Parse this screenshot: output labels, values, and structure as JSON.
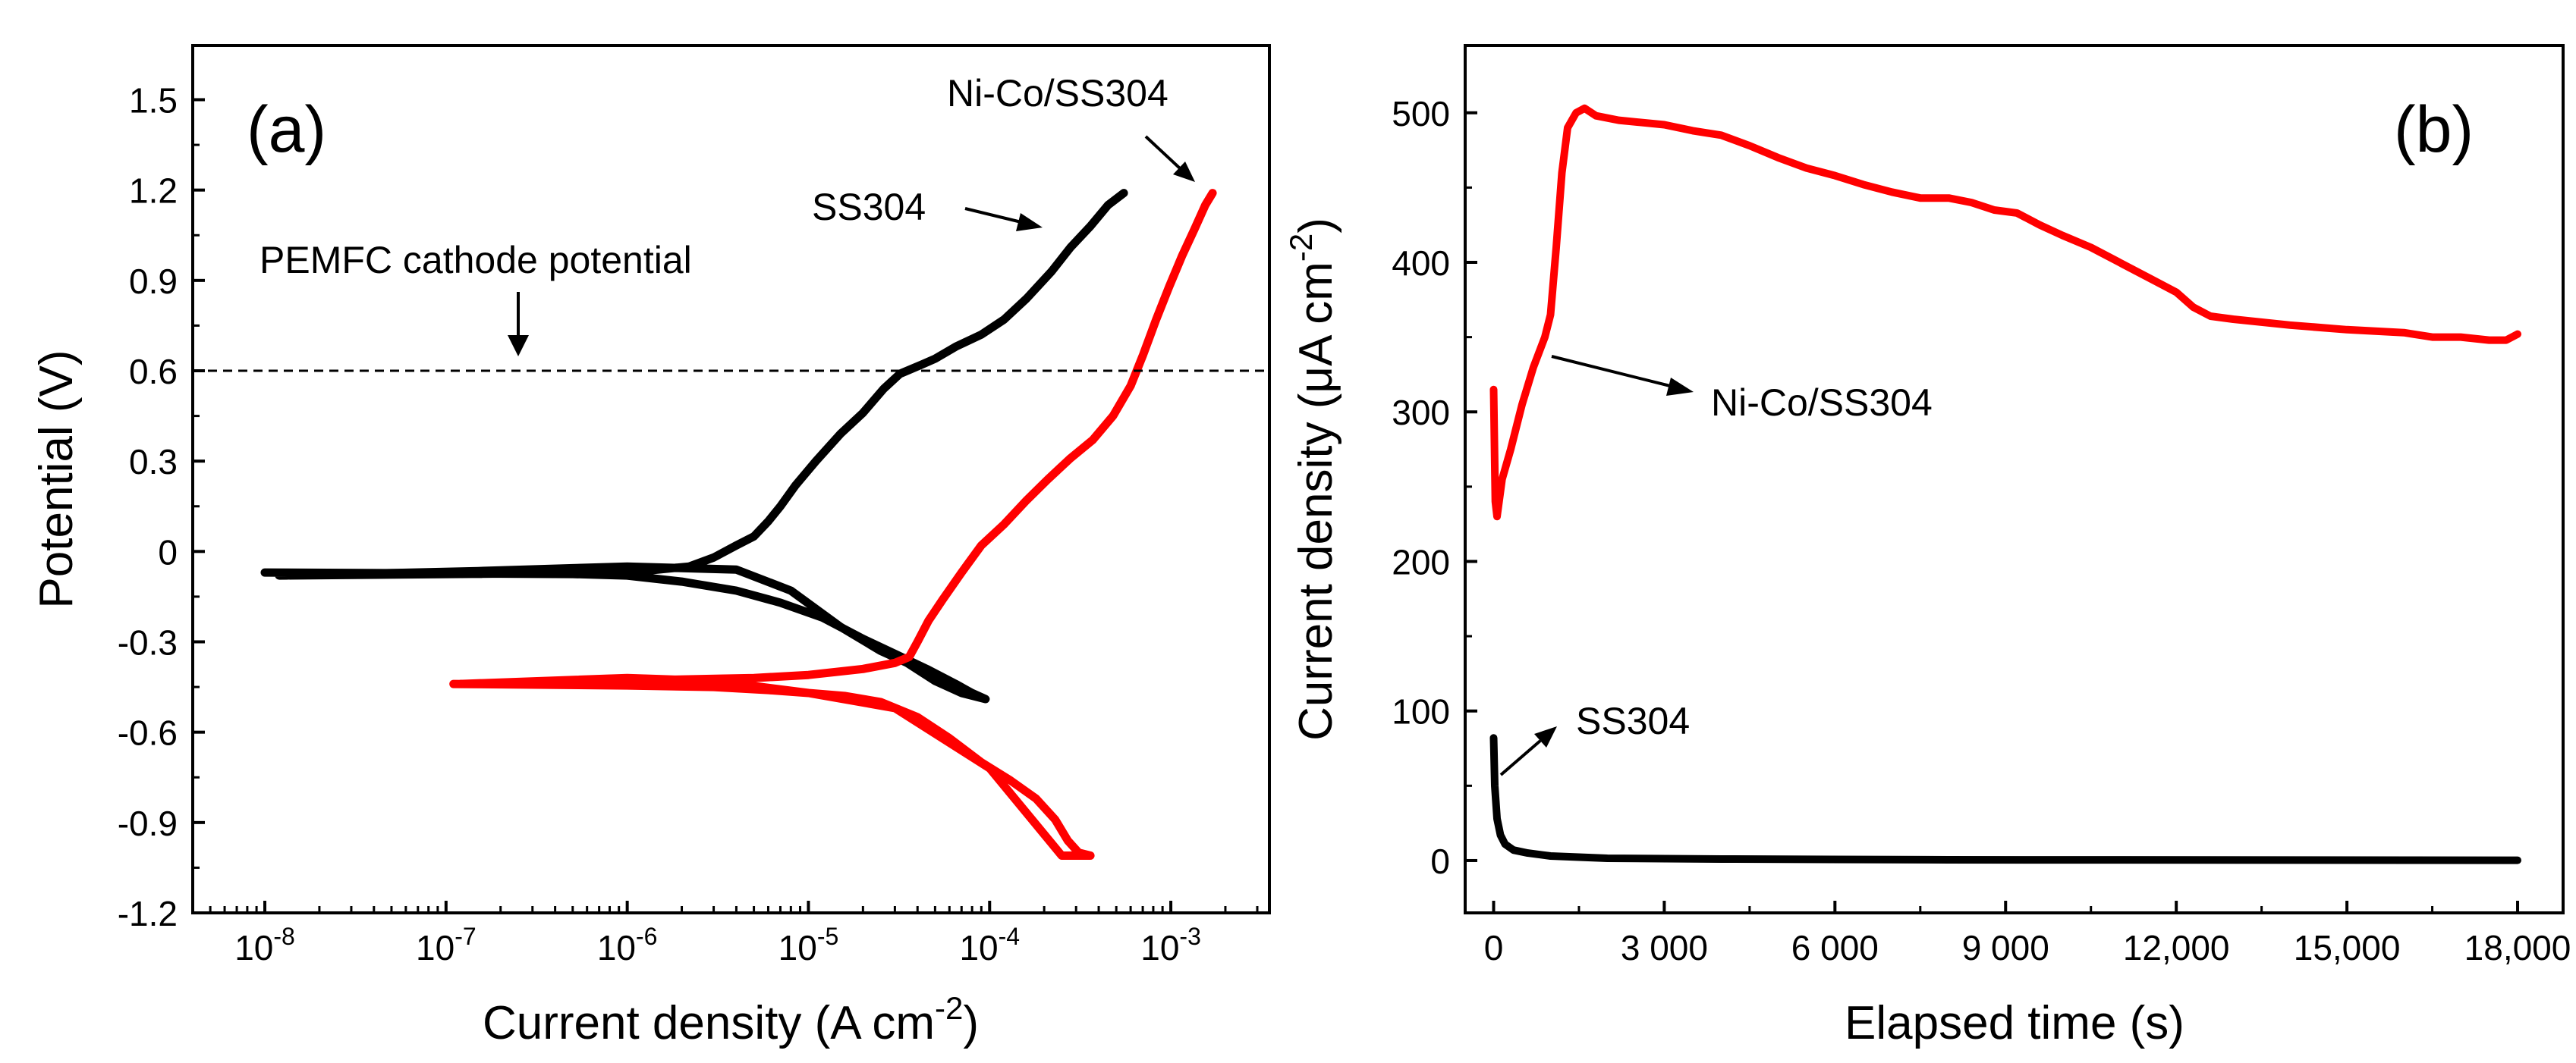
{
  "figure": {
    "colors": {
      "black_series": "#000000",
      "red_series": "#ff0000",
      "axis": "#000000",
      "reference_line": "#000000"
    }
  },
  "chart_data": [
    {
      "panel": "a",
      "type": "line",
      "panel_label": "(a)",
      "title": "",
      "xlabel": "Current density (A cm",
      "xlabel_sup": "-2",
      "xlabel_end": ")",
      "ylabel": "Potential (V)",
      "xscale": "log",
      "xlim": [
        4e-09,
        0.0035
      ],
      "ylim": [
        -1.2,
        1.68
      ],
      "x_ticks": [
        {
          "base": "10",
          "exp": "-8",
          "value": 1e-08
        },
        {
          "base": "10",
          "exp": "-7",
          "value": 1e-07
        },
        {
          "base": "10",
          "exp": "-6",
          "value": 1e-06
        },
        {
          "base": "10",
          "exp": "-5",
          "value": 1e-05
        },
        {
          "base": "10",
          "exp": "-4",
          "value": 0.0001
        },
        {
          "base": "10",
          "exp": "-3",
          "value": 0.001
        }
      ],
      "y_ticks": [
        {
          "label": "1.5",
          "value": 1.5
        },
        {
          "label": "1.2",
          "value": 1.2
        },
        {
          "label": "0.9",
          "value": 0.9
        },
        {
          "label": "0.6",
          "value": 0.6
        },
        {
          "label": "0.3",
          "value": 0.3
        },
        {
          "label": "0",
          "value": 0
        },
        {
          "label": "-0.3",
          "value": -0.3
        },
        {
          "label": "-0.6",
          "value": -0.6
        },
        {
          "label": "-0.9",
          "value": -0.9
        },
        {
          "label": "-1.2",
          "value": -1.2
        }
      ],
      "reference_line": {
        "y": 0.6,
        "label": "PEMFC cathode potential",
        "style": "dashed"
      },
      "annotations": [
        {
          "text": "SS304",
          "series": "SS304"
        },
        {
          "text": "Ni-Co/SS304",
          "series": "Ni-Co/SS304"
        }
      ],
      "series": [
        {
          "name": "SS304",
          "color": "#000000",
          "points": [
            [
              1e-08,
              -0.07
            ],
            [
              5e-07,
              -0.075
            ],
            [
              1e-06,
              -0.08
            ],
            [
              2e-06,
              -0.1
            ],
            [
              4e-06,
              -0.13
            ],
            [
              7e-06,
              -0.17
            ],
            [
              1.2e-05,
              -0.22
            ],
            [
              2e-05,
              -0.29
            ],
            [
              3e-05,
              -0.34
            ],
            [
              4.5e-05,
              -0.39
            ],
            [
              6.5e-05,
              -0.44
            ],
            [
              8e-05,
              -0.47
            ],
            [
              9.5e-05,
              -0.49
            ],
            [
              7e-05,
              -0.47
            ],
            [
              5e-05,
              -0.43
            ],
            [
              3.5e-05,
              -0.37
            ],
            [
              2.5e-05,
              -0.33
            ],
            [
              1.5e-05,
              -0.25
            ],
            [
              8e-06,
              -0.13
            ],
            [
              4e-06,
              -0.06
            ],
            [
              1e-06,
              -0.05
            ],
            [
              1.5e-07,
              -0.065
            ],
            [
              1.2e-08,
              -0.08
            ],
            [
              1e-06,
              -0.07
            ],
            [
              2.2e-06,
              -0.05
            ],
            [
              3e-06,
              -0.02
            ],
            [
              4e-06,
              0.02
            ],
            [
              5e-06,
              0.05
            ],
            [
              6e-06,
              0.1
            ],
            [
              7e-06,
              0.15
            ],
            [
              8.5e-06,
              0.22
            ],
            [
              1.1e-05,
              0.3
            ],
            [
              1.5e-05,
              0.39
            ],
            [
              2e-05,
              0.46
            ],
            [
              2.6e-05,
              0.54
            ],
            [
              3.2e-05,
              0.59
            ],
            [
              4.2e-05,
              0.62
            ],
            [
              5e-05,
              0.64
            ],
            [
              6.5e-05,
              0.68
            ],
            [
              9e-05,
              0.72
            ],
            [
              0.00012,
              0.77
            ],
            [
              0.00016,
              0.84
            ],
            [
              0.00022,
              0.93
            ],
            [
              0.00028,
              1.01
            ],
            [
              0.00036,
              1.08
            ],
            [
              0.00045,
              1.15
            ],
            [
              0.00055,
              1.19
            ]
          ]
        },
        {
          "name": "Ni-Co/SS304",
          "color": "#ff0000",
          "points": [
            [
              1.1e-07,
              -0.44
            ],
            [
              1e-06,
              -0.445
            ],
            [
              3e-06,
              -0.45
            ],
            [
              6e-06,
              -0.46
            ],
            [
              1e-05,
              -0.47
            ],
            [
              1.6e-05,
              -0.48
            ],
            [
              2.5e-05,
              -0.5
            ],
            [
              4e-05,
              -0.55
            ],
            [
              6e-05,
              -0.62
            ],
            [
              9e-05,
              -0.7
            ],
            [
              0.00013,
              -0.76
            ],
            [
              0.00018,
              -0.82
            ],
            [
              0.00023,
              -0.89
            ],
            [
              0.00027,
              -0.96
            ],
            [
              0.00031,
              -1.0
            ],
            [
              0.00036,
              -1.01
            ],
            [
              0.00025,
              -1.01
            ],
            [
              0.0001,
              -0.72
            ],
            [
              3e-05,
              -0.52
            ],
            [
              1e-05,
              -0.47
            ],
            [
              3e-06,
              -0.43
            ],
            [
              1e-06,
              -0.42
            ],
            [
              1.2e-07,
              -0.44
            ],
            [
              5e-06,
              -0.42
            ],
            [
              1e-05,
              -0.41
            ],
            [
              2e-05,
              -0.39
            ],
            [
              3e-05,
              -0.37
            ],
            [
              3.6e-05,
              -0.35
            ],
            [
              4e-05,
              -0.3
            ],
            [
              4.6e-05,
              -0.23
            ],
            [
              5.5e-05,
              -0.16
            ],
            [
              7e-05,
              -0.07
            ],
            [
              9e-05,
              0.02
            ],
            [
              0.00012,
              0.09
            ],
            [
              0.00016,
              0.17
            ],
            [
              0.00021,
              0.24
            ],
            [
              0.00028,
              0.31
            ],
            [
              0.00037,
              0.37
            ],
            [
              0.00048,
              0.45
            ],
            [
              0.0006,
              0.55
            ],
            [
              0.0007,
              0.65
            ],
            [
              0.00083,
              0.77
            ],
            [
              0.00098,
              0.88
            ],
            [
              0.00115,
              0.98
            ],
            [
              0.00135,
              1.07
            ],
            [
              0.00155,
              1.15
            ],
            [
              0.0017,
              1.19
            ]
          ]
        }
      ]
    },
    {
      "panel": "b",
      "type": "line",
      "panel_label": "(b)",
      "title": "",
      "xlabel": "Elapsed time (s)",
      "ylabel": "Current density (μA cm",
      "ylabel_sup": "-2",
      "ylabel_end": ")",
      "xlim": [
        -500,
        18800
      ],
      "ylim": [
        -35,
        545
      ],
      "x_ticks": [
        {
          "label": "0",
          "value": 0
        },
        {
          "label": "3 000",
          "value": 3000
        },
        {
          "label": "6 000",
          "value": 6000
        },
        {
          "label": "9 000",
          "value": 9000
        },
        {
          "label": "12,000",
          "value": 12000
        },
        {
          "label": "15,000",
          "value": 15000
        },
        {
          "label": "18,000",
          "value": 18000
        }
      ],
      "y_ticks": [
        {
          "label": "0",
          "value": 0
        },
        {
          "label": "100",
          "value": 100
        },
        {
          "label": "200",
          "value": 200
        },
        {
          "label": "300",
          "value": 300
        },
        {
          "label": "400",
          "value": 400
        },
        {
          "label": "500",
          "value": 500
        }
      ],
      "annotations": [
        {
          "text": "Ni-Co/SS304",
          "series": "Ni-Co/SS304"
        },
        {
          "text": "SS304",
          "series": "SS304"
        }
      ],
      "series": [
        {
          "name": "Ni-Co/SS304",
          "color": "#ff0000",
          "points": [
            [
              0,
              315
            ],
            [
              30,
              240
            ],
            [
              60,
              230
            ],
            [
              150,
              255
            ],
            [
              300,
              275
            ],
            [
              500,
              305
            ],
            [
              700,
              330
            ],
            [
              900,
              350
            ],
            [
              1000,
              365
            ],
            [
              1100,
              410
            ],
            [
              1200,
              460
            ],
            [
              1300,
              490
            ],
            [
              1450,
              500
            ],
            [
              1600,
              503
            ],
            [
              1800,
              498
            ],
            [
              2200,
              495
            ],
            [
              3000,
              492
            ],
            [
              3500,
              488
            ],
            [
              4000,
              485
            ],
            [
              4500,
              478
            ],
            [
              5000,
              470
            ],
            [
              5500,
              463
            ],
            [
              6000,
              458
            ],
            [
              6500,
              452
            ],
            [
              7000,
              447
            ],
            [
              7500,
              443
            ],
            [
              8000,
              443
            ],
            [
              8400,
              440
            ],
            [
              8800,
              435
            ],
            [
              9200,
              433
            ],
            [
              9600,
              425
            ],
            [
              10000,
              418
            ],
            [
              10500,
              410
            ],
            [
              11000,
              400
            ],
            [
              11500,
              390
            ],
            [
              12000,
              380
            ],
            [
              12300,
              370
            ],
            [
              12600,
              364
            ],
            [
              13000,
              362
            ],
            [
              14000,
              358
            ],
            [
              15000,
              355
            ],
            [
              16000,
              353
            ],
            [
              16500,
              350
            ],
            [
              17000,
              350
            ],
            [
              17500,
              348
            ],
            [
              17800,
              348
            ],
            [
              18000,
              352
            ]
          ]
        },
        {
          "name": "SS304",
          "color": "#000000",
          "points": [
            [
              0,
              82
            ],
            [
              20,
              50
            ],
            [
              60,
              28
            ],
            [
              120,
              17
            ],
            [
              200,
              11
            ],
            [
              350,
              7
            ],
            [
              600,
              5
            ],
            [
              1000,
              3
            ],
            [
              2000,
              1.5
            ],
            [
              4000,
              1
            ],
            [
              8000,
              0.5
            ],
            [
              18000,
              0.2
            ]
          ]
        }
      ]
    }
  ]
}
